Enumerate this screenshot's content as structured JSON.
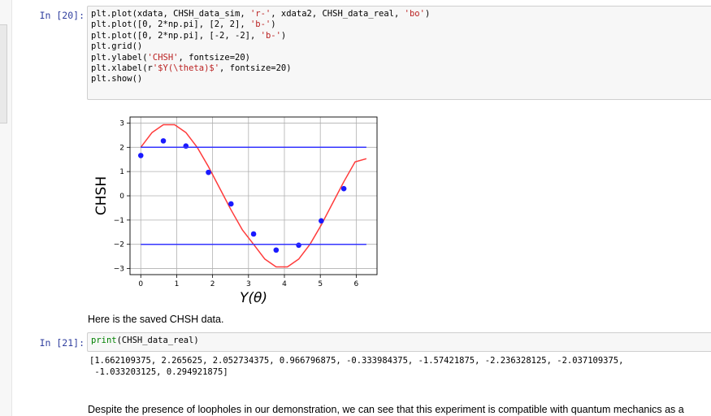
{
  "cell20": {
    "prompt": "In [20]:",
    "code": [
      [
        {
          "t": "plt.plot(xdata, CHSH_data_sim, "
        },
        {
          "t": "'r-'",
          "c": "str"
        },
        {
          "t": ", xdata2, CHSH_data_real, "
        },
        {
          "t": "'bo'",
          "c": "str"
        },
        {
          "t": ")"
        }
      ],
      [
        {
          "t": "plt.plot([0, 2*np.pi], [2, 2], "
        },
        {
          "t": "'b-'",
          "c": "str"
        },
        {
          "t": ")"
        }
      ],
      [
        {
          "t": "plt.plot([0, 2*np.pi], [-2, -2], "
        },
        {
          "t": "'b-'",
          "c": "str"
        },
        {
          "t": ")"
        }
      ],
      [
        {
          "t": "plt.grid()"
        }
      ],
      [
        {
          "t": "plt.ylabel("
        },
        {
          "t": "'CHSH'",
          "c": "str"
        },
        {
          "t": ", fontsize=20)"
        }
      ],
      [
        {
          "t": "plt.xlabel(r"
        },
        {
          "t": "'$Y(\\theta)$'",
          "c": "str"
        },
        {
          "t": ", fontsize=20)"
        }
      ],
      [
        {
          "t": "plt.show()"
        }
      ]
    ]
  },
  "chart_data": {
    "type": "line",
    "xlabel": "Y(θ)",
    "ylabel": "CHSH",
    "xlim": [
      -0.3,
      6.58
    ],
    "ylim": [
      -3.25,
      3.25
    ],
    "xticks": [
      0,
      1,
      2,
      3,
      4,
      5,
      6
    ],
    "yticks": [
      -3,
      -2,
      -1,
      0,
      1,
      2,
      3
    ],
    "ytick_labels": [
      "−3",
      "−2",
      "−1",
      "0",
      "1",
      "2",
      "3"
    ],
    "grid": true,
    "series": [
      {
        "style": "r-",
        "color": "#ff3b3b",
        "x": [
          0,
          0.3142,
          0.6283,
          0.9425,
          1.2566,
          1.5708,
          1.885,
          2.1991,
          2.5133,
          2.8274,
          3.1416,
          3.4558,
          3.7699,
          4.0841,
          4.3982,
          4.7124,
          5.0265,
          5.3407,
          5.6549,
          5.969,
          6.2832
        ],
        "y": [
          2.0,
          2.61,
          2.93,
          2.93,
          2.61,
          2.0,
          1.2,
          0.31,
          -0.58,
          -1.4,
          -2.0,
          -2.61,
          -2.93,
          -2.93,
          -2.61,
          -2.0,
          -1.2,
          -0.31,
          0.58,
          1.4,
          1.53
        ]
      },
      {
        "style": "bo",
        "color": "#1a1aff",
        "x": [
          0,
          0.6283,
          1.2566,
          1.885,
          2.5133,
          3.1416,
          3.7699,
          4.3982,
          5.0265,
          5.6549
        ],
        "y": [
          1.662109375,
          2.265625,
          2.052734375,
          0.966796875,
          -0.333984375,
          -1.57421875,
          -2.236328125,
          -2.037109375,
          -1.033203125,
          0.294921875
        ]
      },
      {
        "style": "b-",
        "color": "#3333ff",
        "x": [
          0,
          6.2832
        ],
        "y": [
          2,
          2
        ]
      },
      {
        "style": "b-",
        "color": "#3333ff",
        "x": [
          0,
          6.2832
        ],
        "y": [
          -2,
          -2
        ]
      }
    ]
  },
  "markdown1": "Here is the saved CHSH data.",
  "cell21": {
    "prompt": "In [21]:",
    "code": [
      [
        {
          "t": "print",
          "c": "builtin"
        },
        {
          "t": "(CHSH_data_real)"
        }
      ]
    ],
    "output": [
      "[1.662109375, 2.265625, 2.052734375, 0.966796875, -0.333984375, -1.57421875, -2.236328125, -2.037109375,",
      " -1.033203125, 0.294921875]"
    ]
  },
  "markdown2": "Despite the presence of loopholes in our demonstration, we can see that this experiment is compatible with quantum mechanics as a"
}
